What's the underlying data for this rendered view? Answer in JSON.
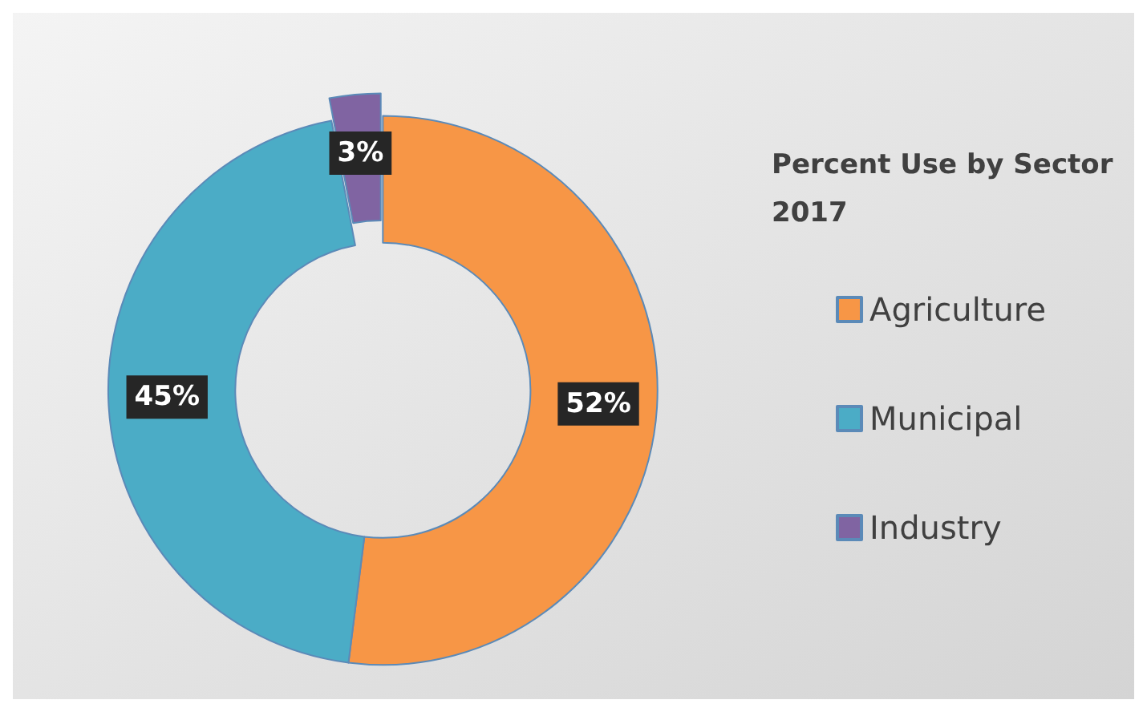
{
  "chart_data": {
    "type": "donut",
    "title": "Percent Use by Sector 2017",
    "categories": [
      "Agriculture",
      "Municipal",
      "Industry"
    ],
    "values": [
      52,
      45,
      3
    ],
    "value_labels": [
      "52%",
      "45%",
      "3%"
    ],
    "colors": [
      "#f79646",
      "#4bacc6",
      "#8064a2"
    ],
    "legend": "right"
  }
}
